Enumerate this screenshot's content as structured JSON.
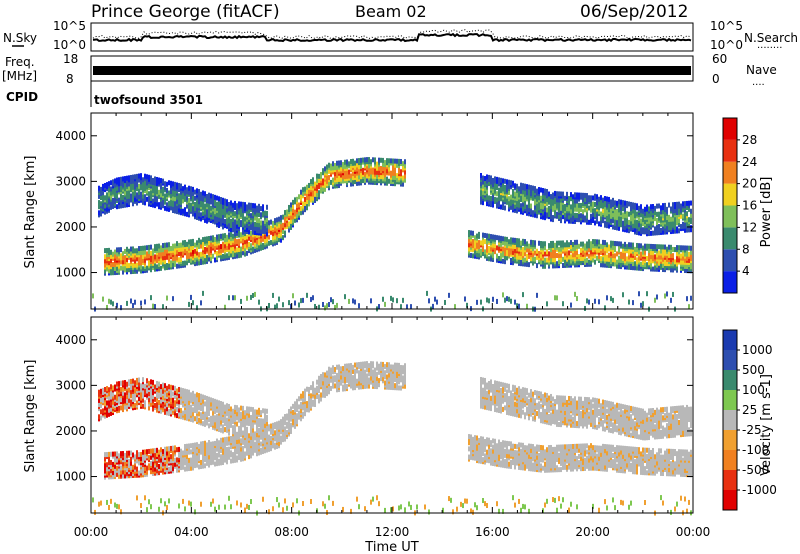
{
  "header": {
    "station": "Prince George (fitACF)",
    "beam": "Beam 02",
    "date": "06/Sep/2012"
  },
  "left_labels": {
    "nsky": "N.Sky",
    "freq_line1": "Freq.",
    "freq_line2": "[MHz]",
    "cpid": "CPID"
  },
  "right_labels": {
    "nsearch": "N.Search",
    "nsearch_dots": "........",
    "nave": "Nave",
    "nave_dots": "...."
  },
  "noise_panel": {
    "left_ticks": [
      "10^5",
      "10^0"
    ],
    "right_ticks": [
      "10^5",
      "10^0"
    ]
  },
  "freq_panel": {
    "left_ticks": [
      "18",
      "8"
    ],
    "right_ticks": [
      "60",
      "0"
    ]
  },
  "cpid_panel": {
    "program": "twofsound 3501"
  },
  "colors": {
    "power": [
      "#0a1fe6",
      "#2e4fb0",
      "#3a8a6e",
      "#7fbf5a",
      "#f0d020",
      "#f08020",
      "#e83010",
      "#e00000"
    ],
    "velocity": [
      "#e00000",
      "#e83010",
      "#f08020",
      "#f0a030",
      "#b8b8b8",
      "#7ec850",
      "#3a8a6e",
      "#2e4fb0",
      "#1a3ab0"
    ]
  },
  "chart_data": [
    {
      "type": "heatmap",
      "name_label": "power",
      "ylabel": "Slant Range [km]",
      "ylim": [
        200,
        4500
      ],
      "yticks": [
        "1000",
        "2000",
        "3000",
        "4000"
      ],
      "xlim": [
        0,
        24
      ],
      "colorbar": {
        "label": "Power [dB]",
        "range": [
          0,
          32
        ],
        "ticks": [
          "4",
          "8",
          "12",
          "16",
          "20",
          "24",
          "28"
        ]
      },
      "bands": [
        {
          "description": "main echo band",
          "points": [
            [
              0.5,
              1300
            ],
            [
              2,
              1350
            ],
            [
              4,
              1500
            ],
            [
              6,
              1700
            ],
            [
              7.5,
              2000
            ],
            [
              8.5,
              2700
            ],
            [
              9.5,
              3200
            ],
            [
              11,
              3300
            ],
            [
              12.5,
              3250
            ]
          ],
          "power_db": 26
        },
        {
          "description": "upper echo band",
          "points": [
            [
              0.2,
              2600
            ],
            [
              1,
              2800
            ],
            [
              2,
              2900
            ],
            [
              4,
              2600
            ],
            [
              5.5,
              2300
            ],
            [
              7,
              2200
            ]
          ],
          "power_db": 12
        },
        {
          "description": "evening band",
          "points": [
            [
              15,
              1700
            ],
            [
              16.5,
              1550
            ],
            [
              18,
              1450
            ],
            [
              20,
              1500
            ],
            [
              22,
              1400
            ],
            [
              24,
              1350
            ]
          ],
          "power_db": 24
        },
        {
          "description": "evening upper band",
          "points": [
            [
              15.5,
              2900
            ],
            [
              17,
              2700
            ],
            [
              18.5,
              2500
            ],
            [
              20,
              2450
            ],
            [
              22,
              2200
            ],
            [
              24,
              2300
            ]
          ],
          "power_db": 14
        }
      ]
    },
    {
      "type": "heatmap",
      "name_label": "velocity",
      "ylabel": "Slant Range [km]",
      "ylim": [
        200,
        4500
      ],
      "yticks": [
        "1000",
        "2000",
        "3000",
        "4000"
      ],
      "xlabel": "Time UT",
      "xticks": [
        "00:00",
        "04:00",
        "08:00",
        "12:00",
        "16:00",
        "20:00",
        "00:00"
      ],
      "colorbar": {
        "label": "Velocity [m s-1]",
        "ticks": [
          "1000",
          "500",
          "100",
          "25",
          "-25",
          "-100",
          "-500",
          "-1000"
        ]
      }
    }
  ]
}
